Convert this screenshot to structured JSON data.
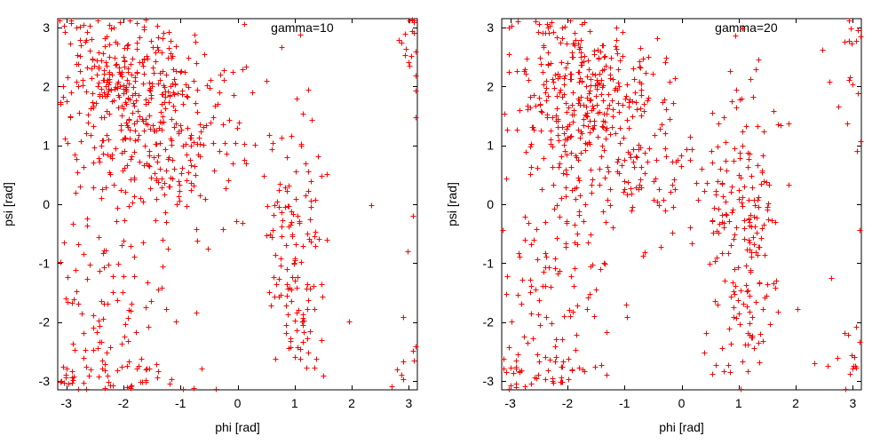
{
  "figure": {
    "background": "#ffffff",
    "axis_color": "#000000",
    "text_color": "#000000"
  },
  "chart_data": [
    {
      "type": "scatter",
      "key_label": "gamma=10",
      "xlabel": "phi [rad]",
      "ylabel": "psi [rad]",
      "xlim": [
        -3.15,
        3.15
      ],
      "ylim": [
        -3.15,
        3.15
      ],
      "xticks": [
        -3,
        -2,
        -1,
        0,
        1,
        2,
        3
      ],
      "yticks": [
        -3,
        -2,
        -1,
        0,
        1,
        2,
        3
      ],
      "grid": false,
      "legend_position": "top-center-right-inside",
      "marker": {
        "shape": "plus",
        "color": "#ff0000",
        "size": 7
      },
      "angle_wrap_at_pi": true,
      "seed": 7,
      "clusters": [
        {
          "cx": -1.9,
          "cy": 2.15,
          "sx": 0.6,
          "sy": 0.55,
          "n": 250
        },
        {
          "cx": -1.5,
          "cy": 1.05,
          "sx": 0.68,
          "sy": 0.8,
          "n": 230
        },
        {
          "cx": -2.3,
          "cy": -1.5,
          "sx": 0.55,
          "sy": 0.8,
          "n": 85
        },
        {
          "cx": -2.5,
          "cy": -2.9,
          "sx": 0.5,
          "sy": 0.25,
          "n": 60
        },
        {
          "cx": 1.0,
          "cy": -0.85,
          "sx": 0.28,
          "sy": 1.25,
          "n": 140
        },
        {
          "cx": 3.05,
          "cy": 2.8,
          "sx": 0.1,
          "sy": 0.3,
          "n": 8
        },
        {
          "cx": -0.35,
          "cy": 1.2,
          "sx": 0.5,
          "sy": 0.9,
          "n": 16
        },
        {
          "cx": 3.05,
          "cy": -3.0,
          "sx": 0.07,
          "sy": 0.1,
          "n": 3
        }
      ]
    },
    {
      "type": "scatter",
      "key_label": "gamma=20",
      "xlabel": "phi [rad]",
      "ylabel": "psi [rad]",
      "xlim": [
        -3.15,
        3.15
      ],
      "ylim": [
        -3.15,
        3.15
      ],
      "xticks": [
        -3,
        -2,
        -1,
        0,
        1,
        2,
        3
      ],
      "yticks": [
        -3,
        -2,
        -1,
        0,
        1,
        2,
        3
      ],
      "grid": false,
      "legend_position": "top-center-right-inside",
      "marker": {
        "shape": "plus",
        "color": "#ff0000",
        "size": 7
      },
      "angle_wrap_at_pi": true,
      "seed": 13,
      "clusters": [
        {
          "cx": -1.95,
          "cy": 2.0,
          "sx": 0.65,
          "sy": 0.6,
          "n": 225
        },
        {
          "cx": -1.4,
          "cy": 0.9,
          "sx": 0.7,
          "sy": 0.85,
          "n": 215
        },
        {
          "cx": -2.35,
          "cy": -1.55,
          "sx": 0.55,
          "sy": 0.8,
          "n": 85
        },
        {
          "cx": -2.5,
          "cy": -2.9,
          "sx": 0.5,
          "sy": 0.25,
          "n": 55
        },
        {
          "cx": 1.1,
          "cy": -0.75,
          "sx": 0.32,
          "sy": 1.3,
          "n": 205
        },
        {
          "cx": 3.0,
          "cy": 2.5,
          "sx": 0.12,
          "sy": 0.35,
          "n": 8
        },
        {
          "cx": -0.25,
          "cy": 1.0,
          "sx": 0.55,
          "sy": 0.9,
          "n": 18
        },
        {
          "cx": 3.05,
          "cy": -2.9,
          "sx": 0.08,
          "sy": 0.18,
          "n": 7
        }
      ]
    }
  ]
}
